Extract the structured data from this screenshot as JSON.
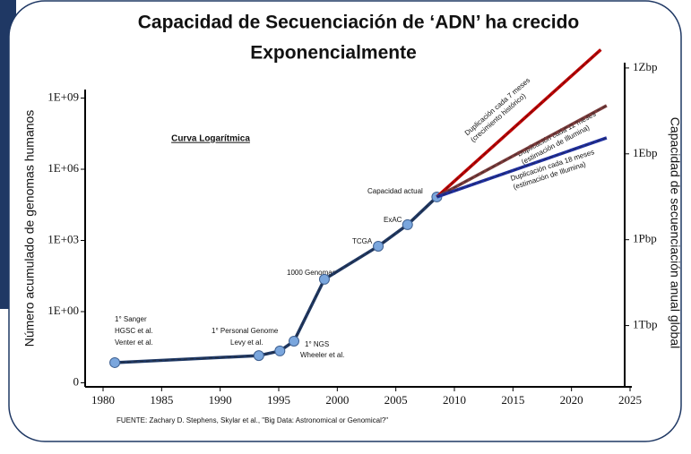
{
  "chart_data": {
    "type": "line",
    "title": "Capacidad de Secuenciación de ‘ADN’ ha crecido",
    "subtitle": "Exponencialmente",
    "ylabel": "Número acumulado de genomas humanos",
    "y2label": "Capacidad de secuenciación anual global",
    "source": "FUENTE: Zachary D. Stephens, Skylar et al., \"Big Data: Astronomical or Genomical?\"",
    "curve_label": "Curva Logarítmica",
    "log_y": true,
    "xlim": [
      1980,
      2025
    ],
    "xticks": [
      1980,
      1985,
      1990,
      1995,
      2000,
      2005,
      2010,
      2015,
      2020,
      2025
    ],
    "ylim": [
      0.001,
      10000000000
    ],
    "yticks": [
      {
        "value": 0.001,
        "label": "0"
      },
      {
        "value": 1,
        "label": "1E+00"
      },
      {
        "value": 1000,
        "label": "1E+03"
      },
      {
        "value": 1000000,
        "label": "1E+06"
      },
      {
        "value": 1000000000,
        "label": "1E+09"
      }
    ],
    "y2lim": [
      10000000000,
      600000000000000000000
    ],
    "y2ticks": [
      {
        "value": 1000000000000,
        "label": "1Tbp"
      },
      {
        "value": 1000000000000000,
        "label": "1Pbp"
      },
      {
        "value": 1000000000000000000,
        "label": "1Ebp"
      },
      {
        "value": 1000000000000000000000,
        "label": "1Zbp"
      }
    ],
    "series": [
      {
        "color": "#1f3864",
        "marker_color": "#7aa6dd",
        "x": [
          1981,
          1993.3,
          1995.1,
          1996.3,
          1998.9,
          2003.5,
          2006,
          2008.5
        ],
        "values": [
          0.0071,
          0.014,
          0.022,
          0.057,
          23,
          570,
          4600,
          68000
        ]
      },
      {
        "color": "#c00000",
        "x": [
          2008.5,
          2022.5
        ],
        "values": [
          68000,
          110000000000
        ]
      },
      {
        "color": "#7b3b3b",
        "x": [
          2008.5,
          2023
        ],
        "values": [
          68000,
          480000000
        ]
      },
      {
        "color": "#1f2fa0",
        "x": [
          2008.5,
          2023
        ],
        "values": [
          68000,
          21000000
        ]
      }
    ],
    "annotations": [
      "1° Sanger",
      "HGSC et al.",
      "Venter et al.",
      "1° Personal Genome",
      "Levy et al.",
      "1° NGS",
      "Wheeler et al.",
      "1000 Genomas",
      "TCGA",
      "ExAC",
      "Capacidad actual",
      "Duplicación cada 7 meses",
      "(crecimiento histórico)",
      "Duplicación cada 12 meses",
      "(estimación de Illumina)",
      "Duplicación cada 18 meses",
      "(estimación de Illumina)"
    ]
  }
}
